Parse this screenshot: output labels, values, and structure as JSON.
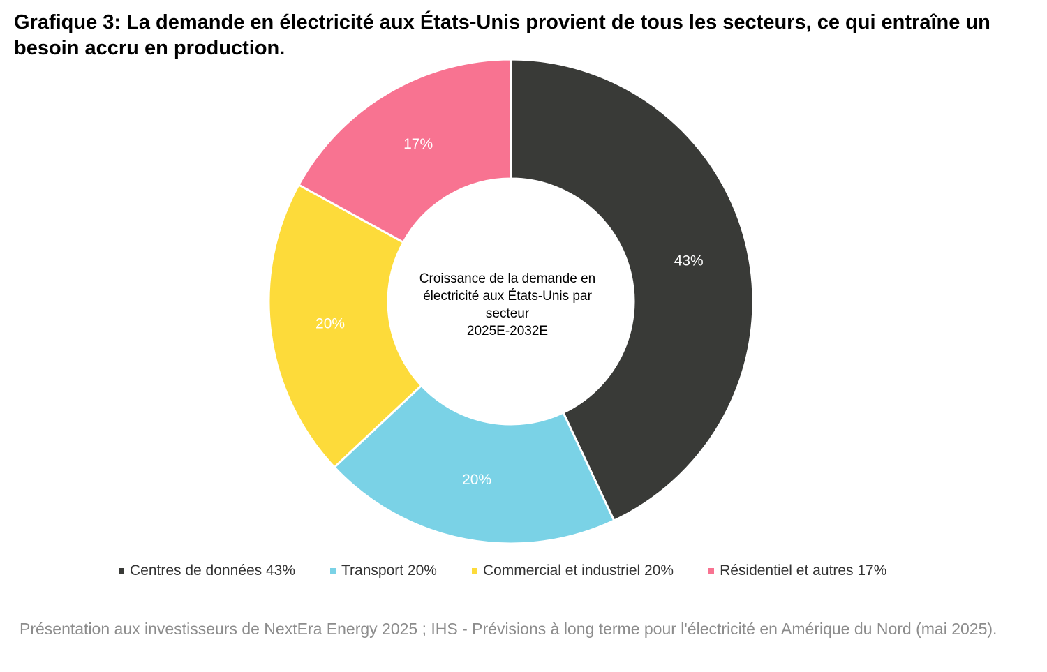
{
  "title": "Grafique 3: La demande en électricité aux États-Unis provient de tous les secteurs, ce qui entraîne un besoin accru en production.",
  "source": "Présentation aux investisseurs de NextEra Energy 2025 ; IHS - Prévisions à long terme pour l'électricité en Amérique du Nord (mai 2025).",
  "chart_data": {
    "type": "pie",
    "variant": "donut",
    "center_label": [
      "Croissance de la demande en",
      "électricité aux États-Unis par",
      "secteur",
      "2025E-2032E"
    ],
    "categories": [
      "Centres de données",
      "Transport",
      "Commercial et industriel",
      "Résidentiel et autres"
    ],
    "values": [
      43,
      20,
      20,
      17
    ],
    "data_labels": [
      "43%",
      "20%",
      "20%",
      "17%"
    ],
    "legend_labels": [
      "Centres de données 43%",
      "Transport 20%",
      "Commercial et industriel 20%",
      "Résidentiel et autres 17%"
    ],
    "colors": [
      "#393a37",
      "#7ad2e6",
      "#fddb3a",
      "#f87391"
    ],
    "label_colors": [
      "#ffffff",
      "#ffffff",
      "#ffffff",
      "#ffffff"
    ],
    "start_angle_deg": 0,
    "direction": "clockwise",
    "legend_position": "bottom"
  }
}
